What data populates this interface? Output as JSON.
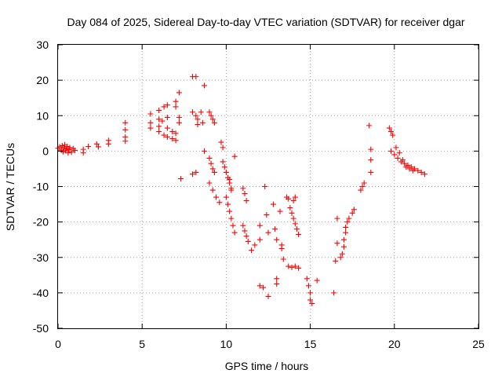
{
  "chart_data": {
    "type": "scatter",
    "title": "Day 084 of 2025, Sidereal Day-to-day VTEC variation (SDTVAR) for receiver dgar",
    "xlabel": "GPS time / hours",
    "ylabel": "SDTVAR / TECUs",
    "xlim": [
      0,
      25
    ],
    "ylim": [
      -50,
      30
    ],
    "xticks": [
      "0",
      "5",
      "10",
      "15",
      "20",
      "25"
    ],
    "yticks": [
      "30",
      "20",
      "10",
      "0",
      "-10",
      "-20",
      "-30",
      "-40",
      "-50"
    ],
    "grid": true,
    "marker": "+",
    "color": "#ff0000",
    "series": [
      {
        "name": "SDTVAR",
        "points": [
          [
            0.0,
            0.8
          ],
          [
            0.1,
            1.2
          ],
          [
            0.2,
            0.3
          ],
          [
            0.25,
            1.5
          ],
          [
            0.3,
            -0.2
          ],
          [
            0.35,
            0.9
          ],
          [
            0.4,
            1.8
          ],
          [
            0.45,
            0.1
          ],
          [
            0.5,
            0.6
          ],
          [
            0.55,
            1.3
          ],
          [
            0.6,
            -0.5
          ],
          [
            0.65,
            0.4
          ],
          [
            0.7,
            1.0
          ],
          [
            0.8,
            -0.3
          ],
          [
            0.9,
            0.7
          ],
          [
            1.0,
            0.2
          ],
          [
            1.5,
            0.5
          ],
          [
            1.5,
            -0.5
          ],
          [
            1.8,
            1.3
          ],
          [
            2.3,
            2.0
          ],
          [
            2.4,
            1.2
          ],
          [
            3.0,
            3.0
          ],
          [
            3.0,
            2.0
          ],
          [
            4.0,
            8.0
          ],
          [
            4.0,
            6.0
          ],
          [
            4.0,
            4.0
          ],
          [
            4.0,
            2.8
          ],
          [
            5.5,
            10.5
          ],
          [
            5.5,
            8.0
          ],
          [
            5.5,
            6.5
          ],
          [
            6.0,
            11.5
          ],
          [
            6.0,
            9.0
          ],
          [
            6.0,
            7.0
          ],
          [
            6.0,
            5.5
          ],
          [
            6.2,
            8.5
          ],
          [
            6.3,
            4.5
          ],
          [
            6.3,
            12.5
          ],
          [
            6.5,
            9.5
          ],
          [
            6.5,
            6.5
          ],
          [
            6.5,
            4.0
          ],
          [
            6.5,
            13.0
          ],
          [
            6.8,
            5.5
          ],
          [
            6.8,
            3.5
          ],
          [
            7.0,
            14.0
          ],
          [
            7.0,
            12.5
          ],
          [
            7.0,
            5.0
          ],
          [
            7.0,
            3.0
          ],
          [
            7.2,
            9.5
          ],
          [
            7.2,
            8.0
          ],
          [
            7.2,
            16.5
          ],
          [
            7.3,
            -7.8
          ],
          [
            8.0,
            21.0
          ],
          [
            8.2,
            21.0
          ],
          [
            8.0,
            11.0
          ],
          [
            8.2,
            10.0
          ],
          [
            8.3,
            9.0
          ],
          [
            8.3,
            7.5
          ],
          [
            8.0,
            -6.5
          ],
          [
            8.2,
            -6.0
          ],
          [
            8.5,
            11.0
          ],
          [
            8.6,
            8.0
          ],
          [
            8.7,
            18.5
          ],
          [
            8.7,
            0.0
          ],
          [
            9.0,
            11.0
          ],
          [
            9.1,
            10.0
          ],
          [
            9.2,
            9.0
          ],
          [
            9.3,
            8.0
          ],
          [
            9.0,
            -2.0
          ],
          [
            9.1,
            -3.5
          ],
          [
            9.2,
            -5.0
          ],
          [
            9.3,
            -6.0
          ],
          [
            9.0,
            -9.0
          ],
          [
            9.2,
            -11.0
          ],
          [
            9.4,
            -13.0
          ],
          [
            9.6,
            -14.5
          ],
          [
            9.7,
            2.5
          ],
          [
            9.8,
            1.0
          ],
          [
            9.8,
            -3.0
          ],
          [
            9.9,
            -4.5
          ],
          [
            10.0,
            -6.0
          ],
          [
            10.1,
            -7.5
          ],
          [
            10.2,
            -9.0
          ],
          [
            10.3,
            -10.5
          ],
          [
            10.0,
            -13.0
          ],
          [
            10.1,
            -15.0
          ],
          [
            10.2,
            -17.0
          ],
          [
            10.3,
            -19.0
          ],
          [
            10.4,
            -21.0
          ],
          [
            10.5,
            -23.0
          ],
          [
            10.2,
            -8.0
          ],
          [
            10.3,
            -11.0
          ],
          [
            10.5,
            -1.5
          ],
          [
            11.0,
            -10.5
          ],
          [
            11.1,
            -12.0
          ],
          [
            11.2,
            -14.0
          ],
          [
            11.0,
            -21.0
          ],
          [
            11.1,
            -22.5
          ],
          [
            11.2,
            -24.0
          ],
          [
            11.3,
            -25.5
          ],
          [
            11.5,
            -28.0
          ],
          [
            11.7,
            -26.5
          ],
          [
            12.0,
            -21.0
          ],
          [
            12.0,
            -25.0
          ],
          [
            12.0,
            -38.0
          ],
          [
            12.2,
            -38.5
          ],
          [
            12.3,
            -10.0
          ],
          [
            12.4,
            -18.0
          ],
          [
            12.5,
            -23.0
          ],
          [
            12.5,
            -41.0
          ],
          [
            12.8,
            -15.0
          ],
          [
            12.9,
            -22.0
          ],
          [
            13.0,
            -25.0
          ],
          [
            13.0,
            -36.0
          ],
          [
            13.0,
            -37.5
          ],
          [
            13.2,
            -17.0
          ],
          [
            13.3,
            -26.5
          ],
          [
            13.3,
            -27.5
          ],
          [
            13.4,
            -30.5
          ],
          [
            13.6,
            -13.0
          ],
          [
            13.7,
            -13.5
          ],
          [
            13.8,
            -16.0
          ],
          [
            13.9,
            -17.5
          ],
          [
            14.0,
            -19.0
          ],
          [
            14.1,
            -20.5
          ],
          [
            14.2,
            -22.0
          ],
          [
            14.3,
            -23.5
          ],
          [
            14.0,
            -14.0
          ],
          [
            14.1,
            -13.0
          ],
          [
            13.7,
            -32.5
          ],
          [
            13.9,
            -32.8
          ],
          [
            14.1,
            -32.5
          ],
          [
            14.3,
            -33.0
          ],
          [
            14.8,
            -36.0
          ],
          [
            14.9,
            -38.0
          ],
          [
            15.0,
            -40.0
          ],
          [
            15.0,
            -42.0
          ],
          [
            15.1,
            -43.0
          ],
          [
            15.4,
            -36.5
          ],
          [
            16.4,
            -40.0
          ],
          [
            16.5,
            -31.0
          ],
          [
            16.6,
            -19.0
          ],
          [
            16.6,
            -26.0
          ],
          [
            16.8,
            -30.0
          ],
          [
            16.9,
            -29.0
          ],
          [
            17.0,
            -27.0
          ],
          [
            17.0,
            -25.0
          ],
          [
            17.1,
            -23.0
          ],
          [
            17.1,
            -21.5
          ],
          [
            17.2,
            -20.0
          ],
          [
            17.3,
            -19.0
          ],
          [
            17.5,
            -17.5
          ],
          [
            17.6,
            -16.5
          ],
          [
            18.0,
            -11.0
          ],
          [
            18.1,
            -10.0
          ],
          [
            18.2,
            -9.0
          ],
          [
            18.5,
            7.2
          ],
          [
            18.6,
            0.5
          ],
          [
            18.6,
            -2.5
          ],
          [
            18.6,
            -6.0
          ],
          [
            19.7,
            6.5
          ],
          [
            19.8,
            5.5
          ],
          [
            19.9,
            4.5
          ],
          [
            19.8,
            0.0
          ],
          [
            20.0,
            -1.0
          ],
          [
            20.2,
            -2.0
          ],
          [
            20.4,
            -3.0
          ],
          [
            20.6,
            -3.5
          ],
          [
            20.8,
            -4.0
          ],
          [
            21.0,
            -4.5
          ],
          [
            21.2,
            -5.0
          ],
          [
            21.4,
            -5.5
          ],
          [
            21.6,
            -6.0
          ],
          [
            21.8,
            -6.5
          ],
          [
            20.1,
            1.0
          ],
          [
            20.3,
            -0.5
          ],
          [
            20.5,
            -2.5
          ],
          [
            20.7,
            -4.5
          ],
          [
            20.9,
            -5.0
          ],
          [
            21.1,
            -5.5
          ]
        ]
      }
    ]
  }
}
